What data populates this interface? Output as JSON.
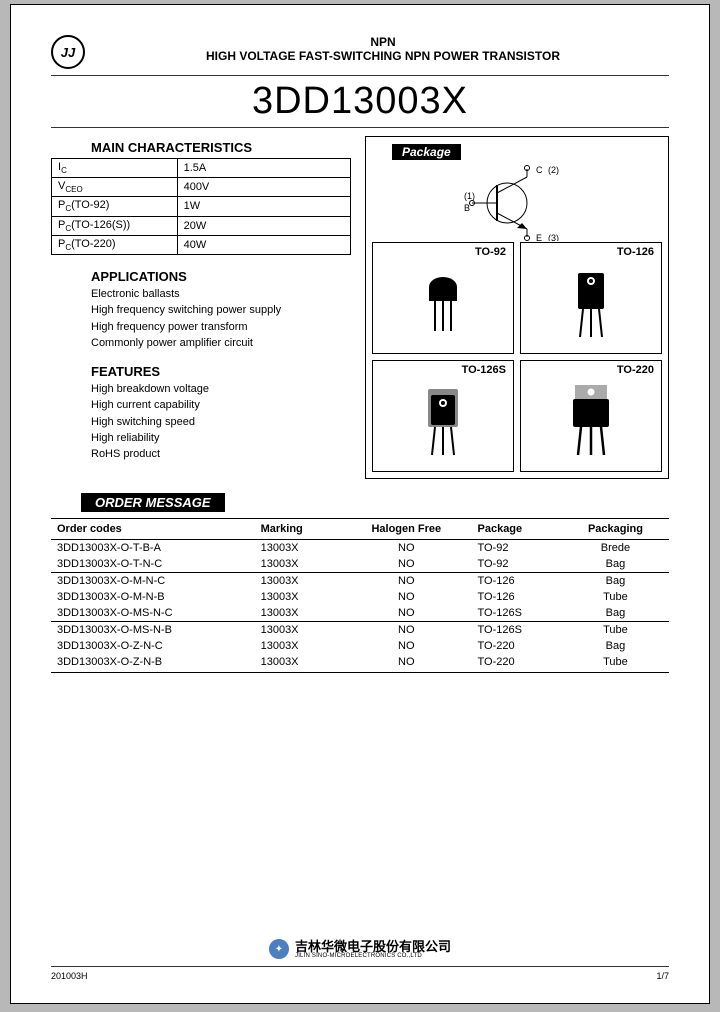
{
  "header": {
    "line1": "NPN",
    "line2": "HIGH VOLTAGE FAST-SWITCHING NPN POWER TRANSISTOR"
  },
  "part_number": "3DD13003X",
  "main_char": {
    "title": "MAIN CHARACTERISTICS",
    "rows": [
      {
        "p": "I",
        "sub": "C",
        "val": "1.5A"
      },
      {
        "p": "V",
        "sub": "CEO",
        "val": "400V"
      },
      {
        "p": "P",
        "sub": "C",
        "note": "(TO-92)",
        "val": "1W"
      },
      {
        "p": "P",
        "sub": "C",
        "note": "(TO-126(S))",
        "val": "20W"
      },
      {
        "p": "P",
        "sub": "C",
        "note": "(TO-220)",
        "val": "40W"
      }
    ]
  },
  "applications": {
    "title": "APPLICATIONS",
    "items": [
      "Electronic ballasts",
      "High frequency switching power supply",
      "High frequency power transform",
      "Commonly power amplifier circuit"
    ]
  },
  "features": {
    "title": "FEATURES",
    "items": [
      "High breakdown voltage",
      "High current capability",
      "High switching speed",
      "High reliability",
      "RoHS product"
    ]
  },
  "package": {
    "title": "Package",
    "pins": {
      "b": "B",
      "c": "C",
      "e": "E",
      "n1": "(1)",
      "n2": "(2)",
      "n3": "(3)"
    },
    "cells": [
      "TO-92",
      "TO-126",
      "TO-126S",
      "TO-220"
    ]
  },
  "order": {
    "title": "ORDER MESSAGE",
    "headers": [
      "Order codes",
      "Marking",
      "Halogen Free",
      "Package",
      "Packaging"
    ],
    "groups": [
      [
        [
          "3DD13003X-O-T-B-A",
          "13003X",
          "NO",
          "TO-92",
          "Brede"
        ],
        [
          "3DD13003X-O-T-N-C",
          "13003X",
          "NO",
          "TO-92",
          "Bag"
        ]
      ],
      [
        [
          "3DD13003X-O-M-N-C",
          "13003X",
          "NO",
          "TO-126",
          "Bag"
        ],
        [
          "3DD13003X-O-M-N-B",
          "13003X",
          "NO",
          "TO-126",
          "Tube"
        ],
        [
          "3DD13003X-O-MS-N-C",
          "13003X",
          "NO",
          "TO-126S",
          "Bag"
        ]
      ],
      [
        [
          "3DD13003X-O-MS-N-B",
          "13003X",
          "NO",
          "TO-126S",
          "Tube"
        ],
        [
          "3DD13003X-O-Z-N-C",
          "13003X",
          "NO",
          "TO-220",
          "Bag"
        ],
        [
          "3DD13003X-O-Z-N-B",
          "13003X",
          "NO",
          "TO-220",
          "Tube"
        ]
      ]
    ]
  },
  "footer": {
    "doc_rev": "201003H",
    "page": "1/7",
    "mfg_cn": "吉林华微电子股份有限公司",
    "mfg_en": "JILIN SINO-MICROELECTRONICS CO.,LTD"
  }
}
